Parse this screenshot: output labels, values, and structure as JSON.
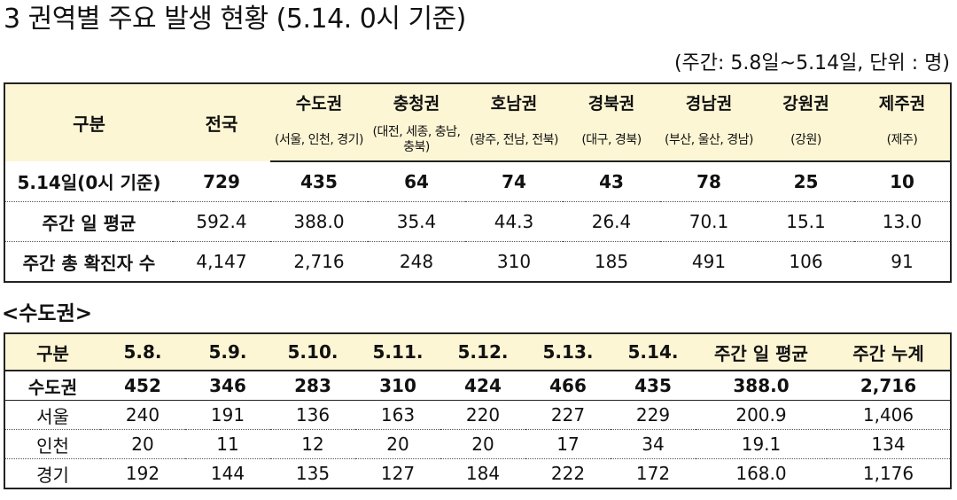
{
  "title": "3  권역별 주요 발생 현황 (5.14. 0시 기준)",
  "unit_note": "(주간: 5.8일~5.14일, 단위 : 명)",
  "region_table": {
    "header_label": "구분",
    "nationwide_label": "전국",
    "regions": [
      {
        "name": "수도권",
        "detail": "(서울, 인천, 경기)"
      },
      {
        "name": "충청권",
        "detail": "(대전, 세종, 충남, 충북)"
      },
      {
        "name": "호남권",
        "detail": "(광주, 전남, 전북)"
      },
      {
        "name": "경북권",
        "detail": "(대구, 경북)"
      },
      {
        "name": "경남권",
        "detail": "(부산, 울산, 경남)"
      },
      {
        "name": "강원권",
        "detail": "(강원)"
      },
      {
        "name": "제주권",
        "detail": "(제주)"
      }
    ],
    "rows": [
      {
        "label": "5.14일(0시 기준)",
        "values": [
          "729",
          "435",
          "64",
          "74",
          "43",
          "78",
          "25",
          "10"
        ]
      },
      {
        "label": "주간 일 평균",
        "values": [
          "592.4",
          "388.0",
          "35.4",
          "44.3",
          "26.4",
          "70.1",
          "15.1",
          "13.0"
        ]
      },
      {
        "label": "주간 총 확진자 수",
        "values": [
          "4,147",
          "2,716",
          "248",
          "310",
          "185",
          "491",
          "106",
          "91"
        ]
      }
    ]
  },
  "metro_subtitle": "<수도권>",
  "metro_table": {
    "headers": [
      "구분",
      "5.8.",
      "5.9.",
      "5.10.",
      "5.11.",
      "5.12.",
      "5.13.",
      "5.14.",
      "주간 일 평균",
      "주간 누계"
    ],
    "rows": [
      {
        "cells": [
          "수도권",
          "452",
          "346",
          "283",
          "310",
          "424",
          "466",
          "435",
          "388.0",
          "2,716"
        ]
      },
      {
        "cells": [
          "서울",
          "240",
          "191",
          "136",
          "163",
          "220",
          "227",
          "229",
          "200.9",
          "1,406"
        ]
      },
      {
        "cells": [
          "인천",
          "20",
          "11",
          "12",
          "20",
          "20",
          "17",
          "34",
          "19.1",
          "134"
        ]
      },
      {
        "cells": [
          "경기",
          "192",
          "144",
          "135",
          "127",
          "184",
          "222",
          "172",
          "168.0",
          "1,176"
        ]
      }
    ]
  }
}
